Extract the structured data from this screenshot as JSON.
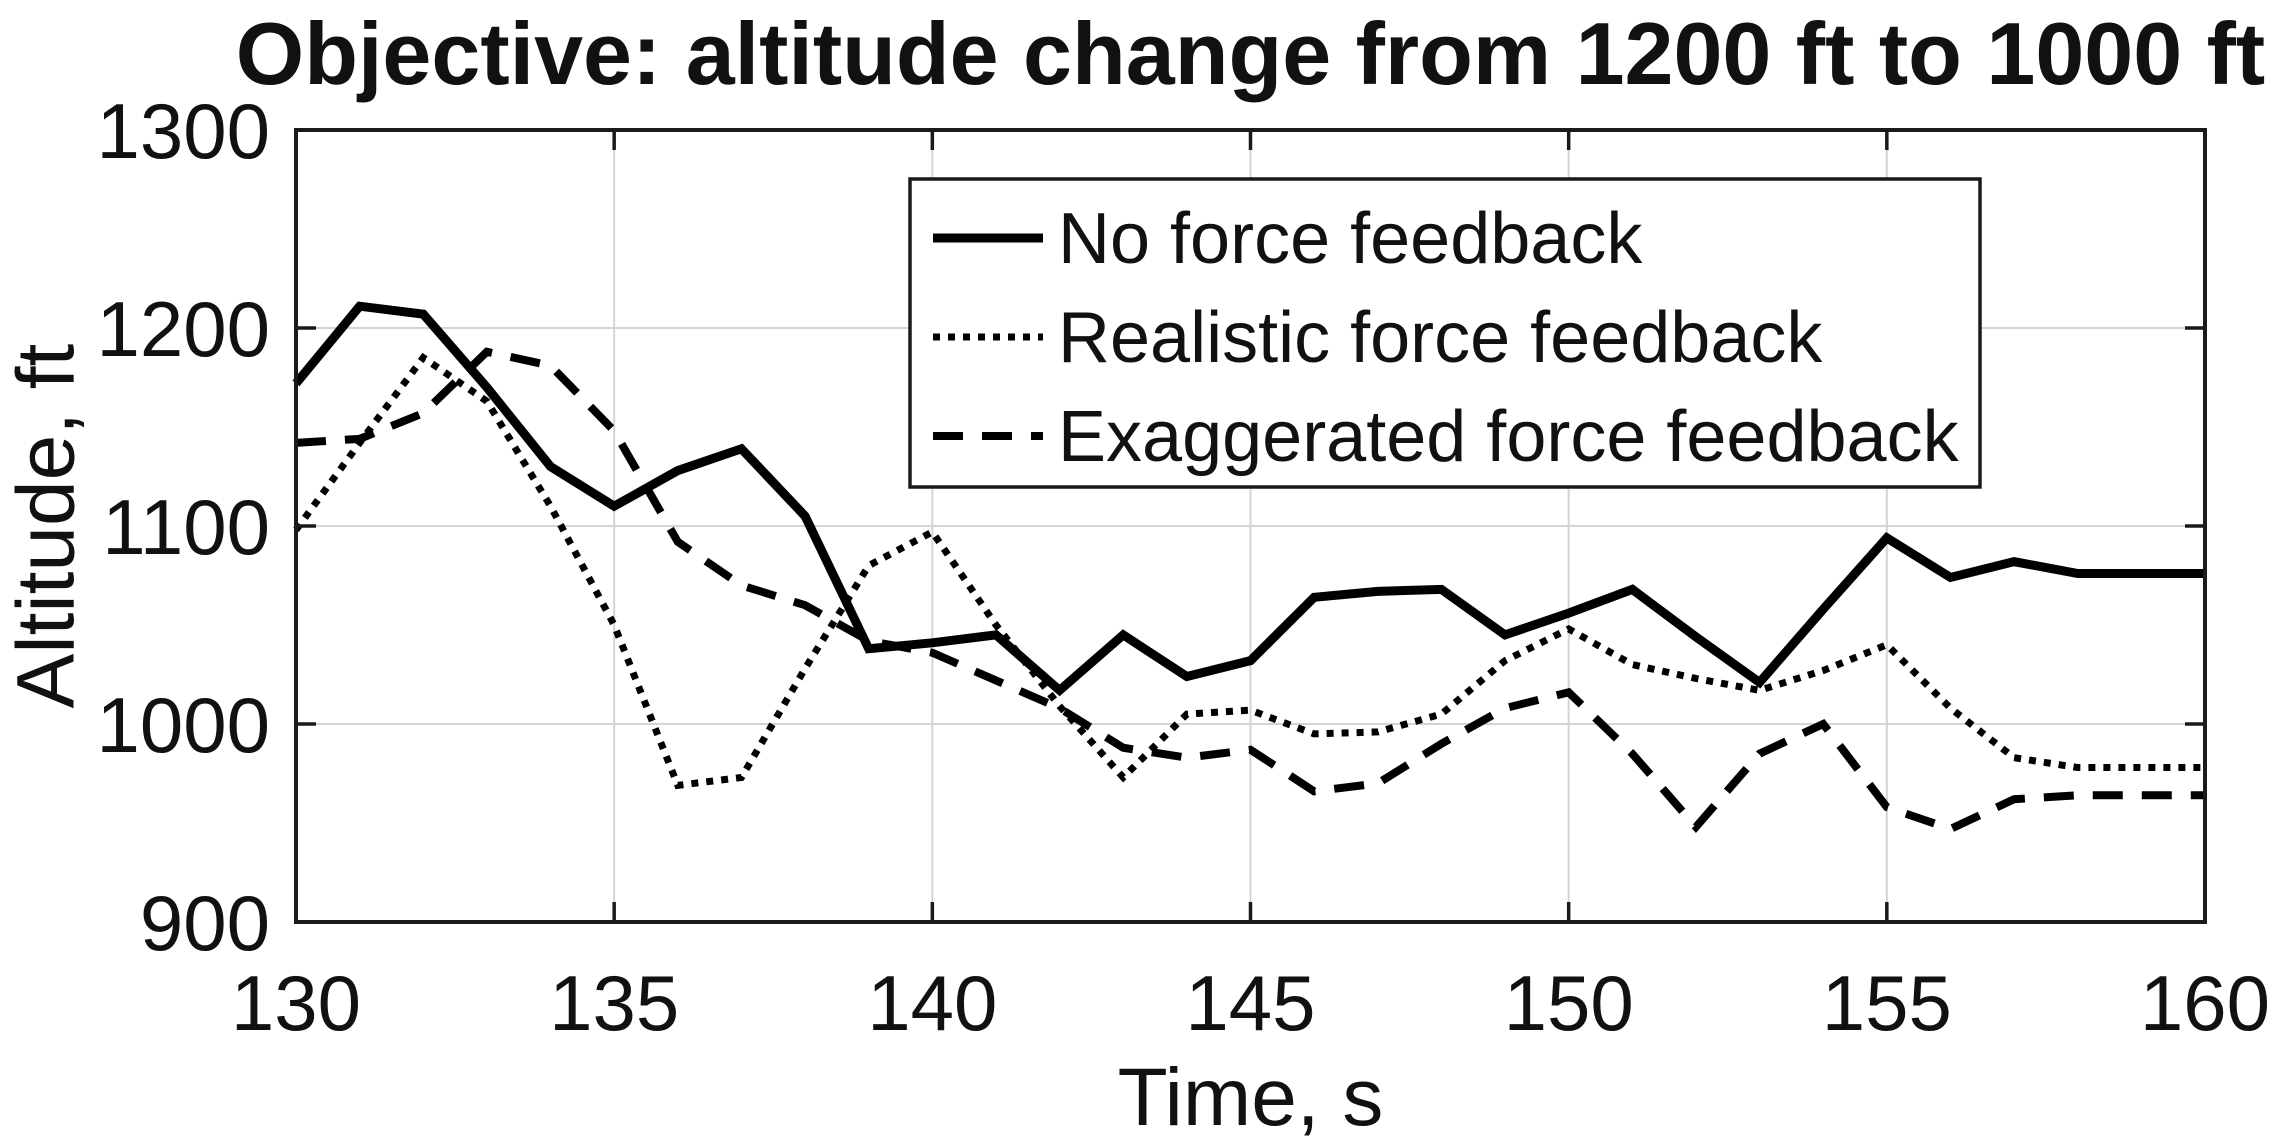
{
  "chart_data": {
    "type": "line",
    "title": "Objective: altitude change from 1200 ft to 1000 ft",
    "xlabel": "Time, s",
    "ylabel": "Altitude, ft",
    "xlim": [
      130,
      160
    ],
    "ylim": [
      900,
      1300
    ],
    "xticks": [
      130,
      135,
      140,
      145,
      150,
      155,
      160
    ],
    "yticks": [
      900,
      1000,
      1100,
      1200,
      1300
    ],
    "grid": true,
    "legend_position": "inside upper center",
    "series_color": "#000000",
    "x": [
      130,
      131,
      132,
      133,
      134,
      135,
      136,
      137,
      138,
      139,
      140,
      141,
      142,
      143,
      144,
      145,
      146,
      147,
      148,
      149,
      150,
      151,
      152,
      153,
      154,
      155,
      156,
      157,
      158,
      159,
      160
    ],
    "series": [
      {
        "name": "No force feedback",
        "style": "solid",
        "values": [
          1172,
          1211,
          1207,
          1170,
          1130,
          1110,
          1128,
          1139,
          1105,
          1038,
          1041,
          1045,
          1017,
          1045,
          1024,
          1032,
          1064,
          1067,
          1068,
          1045,
          1056,
          1068,
          1044,
          1021,
          1058,
          1094,
          1074,
          1082,
          1076,
          1076,
          1076
        ]
      },
      {
        "name": "Realistic force feedback",
        "style": "dotted",
        "values": [
          1098,
          1142,
          1185,
          1163,
          1110,
          1050,
          969,
          973,
          1028,
          1080,
          1097,
          1050,
          1009,
          973,
          1005,
          1007,
          995,
          996,
          1005,
          1032,
          1048,
          1030,
          1023,
          1017,
          1027,
          1040,
          1008,
          983,
          978,
          978,
          978
        ]
      },
      {
        "name": "Exaggerated force feedback",
        "style": "dashed",
        "values": [
          1142,
          1144,
          1157,
          1188,
          1181,
          1148,
          1092,
          1070,
          1060,
          1042,
          1036,
          1022,
          1008,
          988,
          983,
          987,
          966,
          970,
          990,
          1008,
          1016,
          985,
          948,
          985,
          1000,
          958,
          947,
          962,
          964,
          964,
          964
        ]
      }
    ]
  }
}
